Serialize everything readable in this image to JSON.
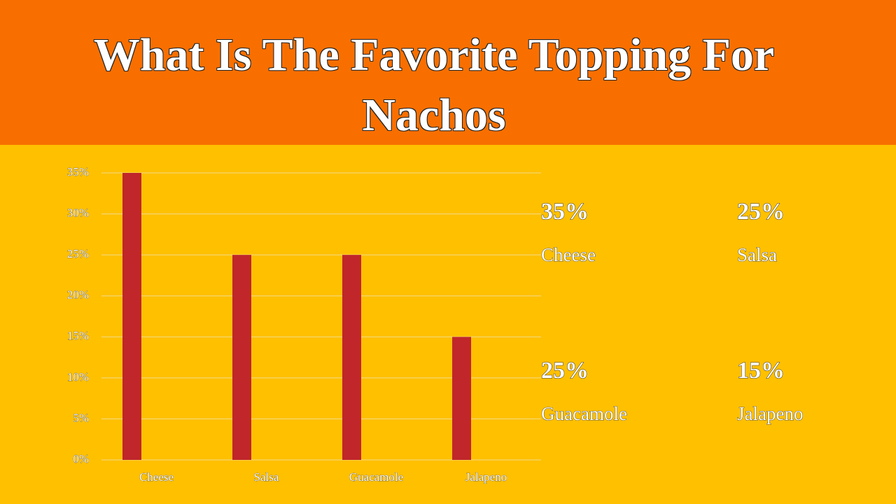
{
  "chart_data": {
    "type": "bar",
    "title": "What Is The Favorite Topping For Nachos",
    "categories": [
      "Cheese",
      "Salsa",
      "Guacamole",
      "Jalapeno"
    ],
    "values": [
      35,
      25,
      25,
      15
    ],
    "value_labels": [
      "35%",
      "25%",
      "25%",
      "15%"
    ],
    "color": "#c0262a",
    "ylim": [
      0,
      35
    ],
    "yticks": [
      {
        "value": 0,
        "label": "0%"
      },
      {
        "value": 5,
        "label": "5%"
      },
      {
        "value": 10,
        "label": "10%"
      },
      {
        "value": 15,
        "label": "15%"
      },
      {
        "value": 20,
        "label": "20%"
      },
      {
        "value": 25,
        "label": "25%"
      },
      {
        "value": 30,
        "label": "30%"
      },
      {
        "value": 35,
        "label": "35%"
      }
    ],
    "grid": true
  }
}
